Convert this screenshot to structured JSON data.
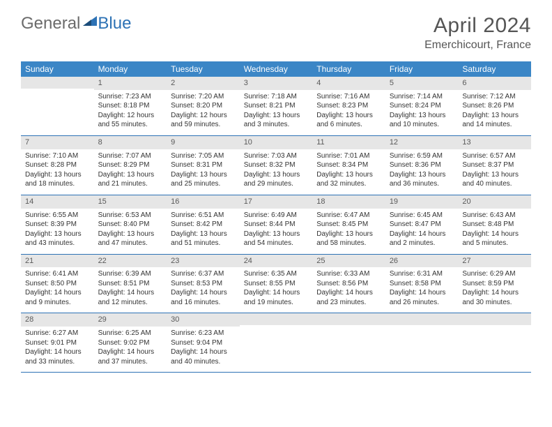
{
  "logo": {
    "general": "General",
    "blue": "Blue"
  },
  "title": "April 2024",
  "location": "Emerchicourt, France",
  "colors": {
    "header_bg": "#3b86c6",
    "row_rule": "#2d72b5",
    "daynum_bg": "#e6e6e6",
    "text": "#333333",
    "title_text": "#555555"
  },
  "dayNames": [
    "Sunday",
    "Monday",
    "Tuesday",
    "Wednesday",
    "Thursday",
    "Friday",
    "Saturday"
  ],
  "weeks": [
    [
      {
        "n": "",
        "lines": [
          "",
          "",
          "",
          ""
        ]
      },
      {
        "n": "1",
        "lines": [
          "Sunrise: 7:23 AM",
          "Sunset: 8:18 PM",
          "Daylight: 12 hours",
          "and 55 minutes."
        ]
      },
      {
        "n": "2",
        "lines": [
          "Sunrise: 7:20 AM",
          "Sunset: 8:20 PM",
          "Daylight: 12 hours",
          "and 59 minutes."
        ]
      },
      {
        "n": "3",
        "lines": [
          "Sunrise: 7:18 AM",
          "Sunset: 8:21 PM",
          "Daylight: 13 hours",
          "and 3 minutes."
        ]
      },
      {
        "n": "4",
        "lines": [
          "Sunrise: 7:16 AM",
          "Sunset: 8:23 PM",
          "Daylight: 13 hours",
          "and 6 minutes."
        ]
      },
      {
        "n": "5",
        "lines": [
          "Sunrise: 7:14 AM",
          "Sunset: 8:24 PM",
          "Daylight: 13 hours",
          "and 10 minutes."
        ]
      },
      {
        "n": "6",
        "lines": [
          "Sunrise: 7:12 AM",
          "Sunset: 8:26 PM",
          "Daylight: 13 hours",
          "and 14 minutes."
        ]
      }
    ],
    [
      {
        "n": "7",
        "lines": [
          "Sunrise: 7:10 AM",
          "Sunset: 8:28 PM",
          "Daylight: 13 hours",
          "and 18 minutes."
        ]
      },
      {
        "n": "8",
        "lines": [
          "Sunrise: 7:07 AM",
          "Sunset: 8:29 PM",
          "Daylight: 13 hours",
          "and 21 minutes."
        ]
      },
      {
        "n": "9",
        "lines": [
          "Sunrise: 7:05 AM",
          "Sunset: 8:31 PM",
          "Daylight: 13 hours",
          "and 25 minutes."
        ]
      },
      {
        "n": "10",
        "lines": [
          "Sunrise: 7:03 AM",
          "Sunset: 8:32 PM",
          "Daylight: 13 hours",
          "and 29 minutes."
        ]
      },
      {
        "n": "11",
        "lines": [
          "Sunrise: 7:01 AM",
          "Sunset: 8:34 PM",
          "Daylight: 13 hours",
          "and 32 minutes."
        ]
      },
      {
        "n": "12",
        "lines": [
          "Sunrise: 6:59 AM",
          "Sunset: 8:36 PM",
          "Daylight: 13 hours",
          "and 36 minutes."
        ]
      },
      {
        "n": "13",
        "lines": [
          "Sunrise: 6:57 AM",
          "Sunset: 8:37 PM",
          "Daylight: 13 hours",
          "and 40 minutes."
        ]
      }
    ],
    [
      {
        "n": "14",
        "lines": [
          "Sunrise: 6:55 AM",
          "Sunset: 8:39 PM",
          "Daylight: 13 hours",
          "and 43 minutes."
        ]
      },
      {
        "n": "15",
        "lines": [
          "Sunrise: 6:53 AM",
          "Sunset: 8:40 PM",
          "Daylight: 13 hours",
          "and 47 minutes."
        ]
      },
      {
        "n": "16",
        "lines": [
          "Sunrise: 6:51 AM",
          "Sunset: 8:42 PM",
          "Daylight: 13 hours",
          "and 51 minutes."
        ]
      },
      {
        "n": "17",
        "lines": [
          "Sunrise: 6:49 AM",
          "Sunset: 8:44 PM",
          "Daylight: 13 hours",
          "and 54 minutes."
        ]
      },
      {
        "n": "18",
        "lines": [
          "Sunrise: 6:47 AM",
          "Sunset: 8:45 PM",
          "Daylight: 13 hours",
          "and 58 minutes."
        ]
      },
      {
        "n": "19",
        "lines": [
          "Sunrise: 6:45 AM",
          "Sunset: 8:47 PM",
          "Daylight: 14 hours",
          "and 2 minutes."
        ]
      },
      {
        "n": "20",
        "lines": [
          "Sunrise: 6:43 AM",
          "Sunset: 8:48 PM",
          "Daylight: 14 hours",
          "and 5 minutes."
        ]
      }
    ],
    [
      {
        "n": "21",
        "lines": [
          "Sunrise: 6:41 AM",
          "Sunset: 8:50 PM",
          "Daylight: 14 hours",
          "and 9 minutes."
        ]
      },
      {
        "n": "22",
        "lines": [
          "Sunrise: 6:39 AM",
          "Sunset: 8:51 PM",
          "Daylight: 14 hours",
          "and 12 minutes."
        ]
      },
      {
        "n": "23",
        "lines": [
          "Sunrise: 6:37 AM",
          "Sunset: 8:53 PM",
          "Daylight: 14 hours",
          "and 16 minutes."
        ]
      },
      {
        "n": "24",
        "lines": [
          "Sunrise: 6:35 AM",
          "Sunset: 8:55 PM",
          "Daylight: 14 hours",
          "and 19 minutes."
        ]
      },
      {
        "n": "25",
        "lines": [
          "Sunrise: 6:33 AM",
          "Sunset: 8:56 PM",
          "Daylight: 14 hours",
          "and 23 minutes."
        ]
      },
      {
        "n": "26",
        "lines": [
          "Sunrise: 6:31 AM",
          "Sunset: 8:58 PM",
          "Daylight: 14 hours",
          "and 26 minutes."
        ]
      },
      {
        "n": "27",
        "lines": [
          "Sunrise: 6:29 AM",
          "Sunset: 8:59 PM",
          "Daylight: 14 hours",
          "and 30 minutes."
        ]
      }
    ],
    [
      {
        "n": "28",
        "lines": [
          "Sunrise: 6:27 AM",
          "Sunset: 9:01 PM",
          "Daylight: 14 hours",
          "and 33 minutes."
        ]
      },
      {
        "n": "29",
        "lines": [
          "Sunrise: 6:25 AM",
          "Sunset: 9:02 PM",
          "Daylight: 14 hours",
          "and 37 minutes."
        ]
      },
      {
        "n": "30",
        "lines": [
          "Sunrise: 6:23 AM",
          "Sunset: 9:04 PM",
          "Daylight: 14 hours",
          "and 40 minutes."
        ]
      },
      {
        "n": "",
        "lines": [
          "",
          "",
          "",
          ""
        ]
      },
      {
        "n": "",
        "lines": [
          "",
          "",
          "",
          ""
        ]
      },
      {
        "n": "",
        "lines": [
          "",
          "",
          "",
          ""
        ]
      },
      {
        "n": "",
        "lines": [
          "",
          "",
          "",
          ""
        ]
      }
    ]
  ]
}
